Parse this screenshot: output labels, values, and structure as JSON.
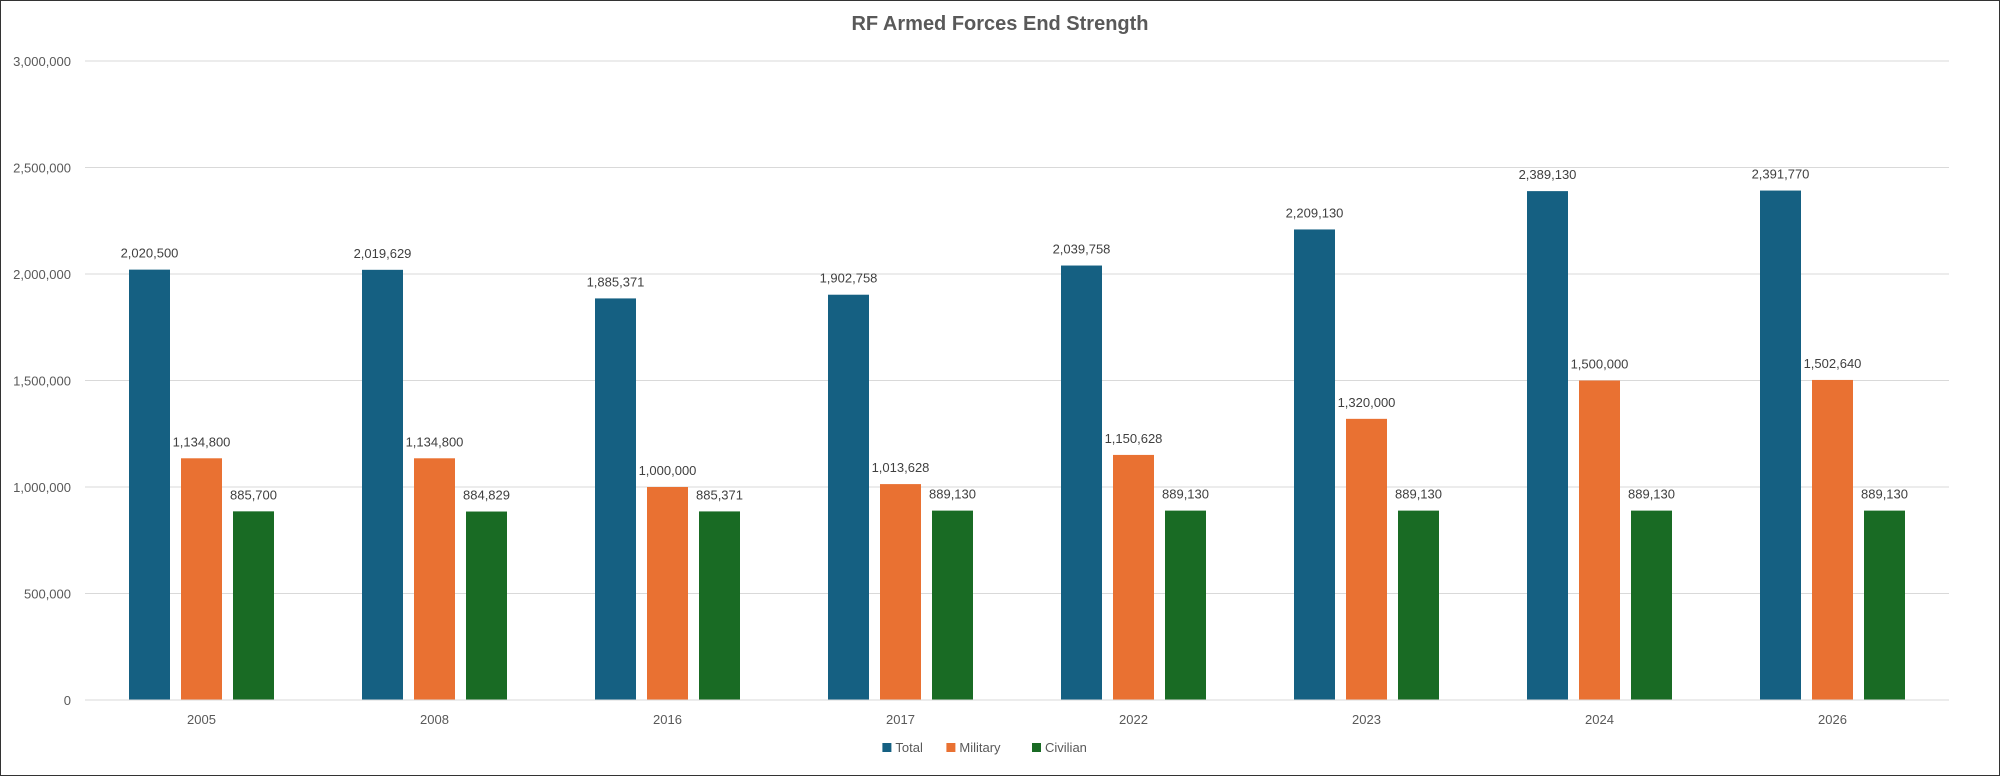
{
  "chart_data": {
    "type": "bar",
    "title": "RF Armed Forces End Strength",
    "xlabel": "",
    "ylabel": "",
    "ylim": [
      0,
      3000000
    ],
    "yticks": [
      0,
      500000,
      1000000,
      1500000,
      2000000,
      2500000,
      3000000
    ],
    "ytick_labels": [
      "0",
      "500,000",
      "1,000,000",
      "1,500,000",
      "2,000,000",
      "2,500,000",
      "3,000,000"
    ],
    "grid": true,
    "legend_position": "bottom",
    "categories": [
      "2005",
      "2008",
      "2016",
      "2017",
      "2022",
      "2023",
      "2024",
      "2026"
    ],
    "series": [
      {
        "name": "Total",
        "color": "#156082",
        "values": [
          2020500,
          2019629,
          1885371,
          1902758,
          2039758,
          2209130,
          2389130,
          2391770
        ],
        "labels": [
          "2,020,500",
          "2,019,629",
          "1,885,371",
          "1,902,758",
          "2,039,758",
          "2,209,130",
          "2,389,130",
          "2,391,770"
        ]
      },
      {
        "name": "Military",
        "color": "#E97132",
        "values": [
          1134800,
          1134800,
          1000000,
          1013628,
          1150628,
          1320000,
          1500000,
          1502640
        ],
        "labels": [
          "1,134,800",
          "1,134,800",
          "1,000,000",
          "1,013,628",
          "1,150,628",
          "1,320,000",
          "1,500,000",
          "1,502,640"
        ]
      },
      {
        "name": "Civilian",
        "color": "#196B24",
        "values": [
          885700,
          884829,
          885371,
          889130,
          889130,
          889130,
          889130,
          889130
        ],
        "labels": [
          "885,700",
          "884,829",
          "885,371",
          "889,130",
          "889,130",
          "889,130",
          "889,130",
          "889,130"
        ]
      }
    ]
  }
}
